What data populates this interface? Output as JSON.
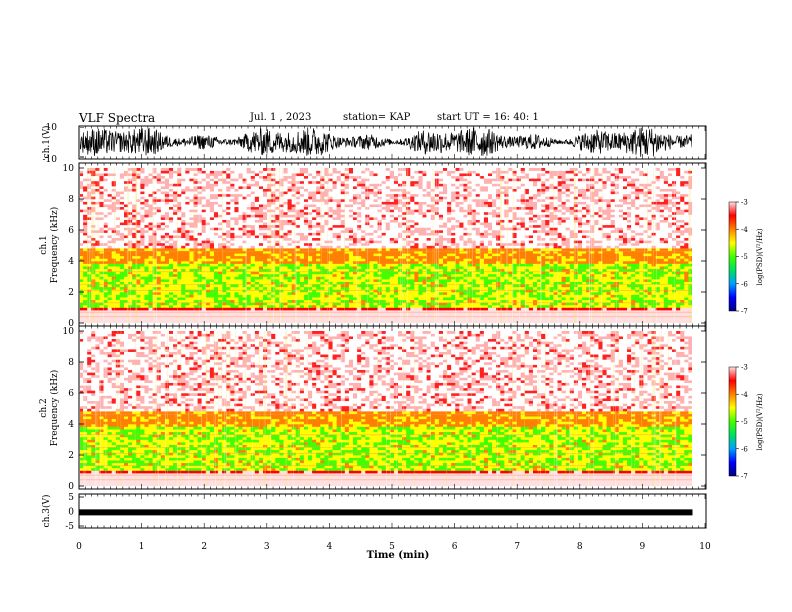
{
  "header": {
    "title": "VLF Spectra",
    "date": "Jul. 1 , 2023",
    "station": "station= KAP",
    "start_time": "start UT = 16: 40: 1"
  },
  "chart_data": [
    {
      "type": "line",
      "id": "ch1_waveform",
      "ylabel": "ch.1(V)",
      "ylim": [
        -10,
        10
      ],
      "y_tick_labels": [
        "10",
        "-10"
      ],
      "xlim": [
        0,
        10
      ],
      "data_end_min": 9.8,
      "description_values": {
        "amplitude_range_v": [
          -10,
          10
        ]
      }
    },
    {
      "type": "heatmap",
      "id": "ch1_spectrogram",
      "ylabel": "ch.1\nFrequency (kHz)",
      "ylabel_line1": "ch.1",
      "ylabel_line2": "Frequency (kHz)",
      "ylim": [
        0,
        10
      ],
      "y_ticks": [
        0,
        2,
        4,
        6,
        8,
        10
      ],
      "y_tick_labels": [
        "0",
        "2",
        "4",
        "6",
        "8",
        "10"
      ],
      "xlim": [
        0,
        10
      ],
      "data_end_min": 9.8,
      "colorbar": {
        "label": "log(PSD)(V²/Hz)",
        "range": [
          -7,
          -3
        ],
        "ticks": [
          -7,
          -6,
          -5,
          -4,
          -3
        ],
        "tick_labels": [
          "-7",
          "-6",
          "-5",
          "-4",
          "-3"
        ]
      }
    },
    {
      "type": "heatmap",
      "id": "ch2_spectrogram",
      "ylabel": "ch.2\nFrequency (kHz)",
      "ylabel_line1": "ch.2",
      "ylabel_line2": "Frequency (kHz)",
      "ylim": [
        0,
        10
      ],
      "y_ticks": [
        0,
        2,
        4,
        6,
        8,
        10
      ],
      "y_tick_labels": [
        "0",
        "2",
        "4",
        "6",
        "8",
        "10"
      ],
      "xlim": [
        0,
        10
      ],
      "data_end_min": 9.8,
      "colorbar": {
        "label": "log(PSD)(V²/Hz)",
        "range": [
          -7,
          -3
        ],
        "ticks": [
          -7,
          -6,
          -5,
          -4,
          -3
        ],
        "tick_labels": [
          "-7",
          "-6",
          "-5",
          "-4",
          "-3"
        ]
      }
    },
    {
      "type": "line",
      "id": "ch3_waveform",
      "ylabel": "ch.3(V)",
      "ylim": [
        -5,
        5
      ],
      "y_ticks": [
        -5,
        0,
        5
      ],
      "y_tick_labels": [
        "-5",
        "0",
        "5"
      ],
      "xlim": [
        0,
        10
      ],
      "data_end_min": 9.8,
      "signal_level_v": -0.3
    }
  ],
  "x_axis": {
    "label": "Time (min)",
    "ticks": [
      0,
      1,
      2,
      3,
      4,
      5,
      6,
      7,
      8,
      9,
      10
    ],
    "tick_labels": [
      "0",
      "1",
      "2",
      "3",
      "4",
      "5",
      "6",
      "7",
      "8",
      "9",
      "10"
    ]
  },
  "colors": {
    "cb_stops": [
      "#000080",
      "#0000ff",
      "#00a0ff",
      "#00e060",
      "#40ff00",
      "#ffff00",
      "#ff8000",
      "#ff0000",
      "#ffe0e0"
    ]
  }
}
